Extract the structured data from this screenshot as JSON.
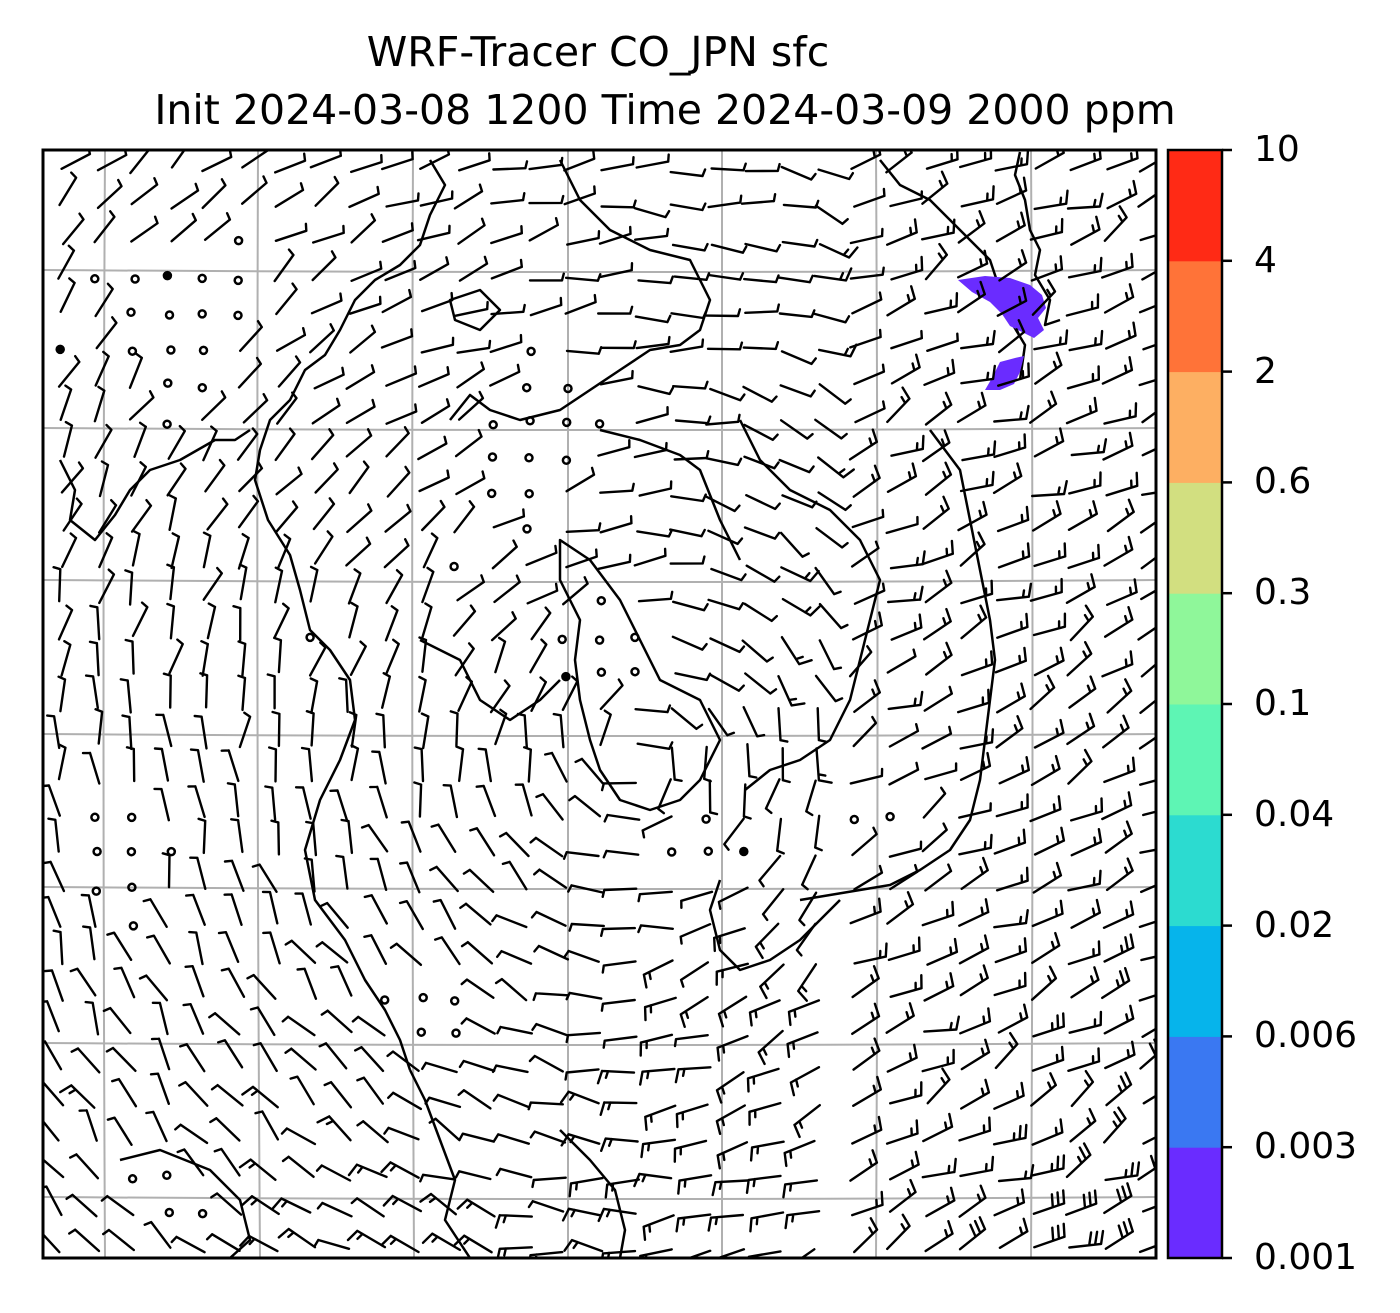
{
  "title": "WRF-Tracer CO_JPN sfc",
  "subtitle": "Init 2024-03-08 1200 Time 2024-03-09 2000 ppm",
  "colorbar": {
    "levels": [
      "0.001",
      "0.003",
      "0.006",
      "0.02",
      "0.04",
      "0.1",
      "0.3",
      "0.6",
      "2",
      "4",
      "10"
    ],
    "colors": [
      "#6a2cff",
      "#3a78f2",
      "#06b4eb",
      "#2cdbd0",
      "#5ef5b4",
      "#8ff79a",
      "#d2df80",
      "#fdaf62",
      "#ff7338",
      "#ff2a15"
    ]
  },
  "colors": {
    "grid": "#b0b0b0",
    "coast": "#000000",
    "tracer": "#6a2cff",
    "barb": "#000000"
  },
  "chart_data": {
    "type": "heatmap",
    "field": "CO_JPN tracer concentration (ppm), surface",
    "overlay": "wind barbs",
    "region": "Japan",
    "max_plume_level_range": [
      "0.001",
      "0.003"
    ],
    "grid": true
  }
}
